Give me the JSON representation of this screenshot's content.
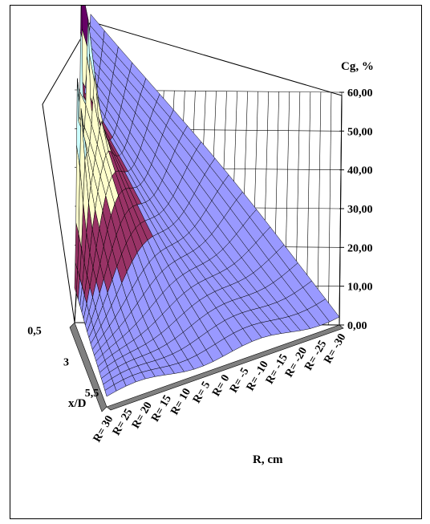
{
  "chart_data": {
    "type": "surface3d",
    "title": "",
    "zlabel": "Cg, %",
    "xlabel": "R, cm",
    "ylabel": "x/D",
    "zlim": [
      0,
      60
    ],
    "z_ticks": [
      "0,00",
      "10,00",
      "20,00",
      "30,00",
      "40,00",
      "50,00",
      "60,00"
    ],
    "r_ticks": [
      "R= 30",
      "R= 25",
      "R= 20",
      "R= 15",
      "R= 10",
      "R= 5",
      "R= 0",
      "R= -5",
      "R= -10",
      "R= -15",
      "R= -20",
      "R= -25",
      "R= -30"
    ],
    "xd_ticks": [
      "0,5",
      "3",
      "5,5"
    ],
    "grid": true,
    "band_colors": [
      "#9999ff",
      "#993366",
      "#ffffcc",
      "#ccffff",
      "#660066"
    ],
    "peaks": [
      {
        "R": 20,
        "x/D": 0.5,
        "Cg": 55
      },
      {
        "R": 5,
        "x/D": 0.5,
        "Cg": 57
      }
    ],
    "profile_near_nozzle": {
      "R": [
        30,
        25,
        20,
        15,
        10,
        5,
        0,
        -5,
        -10,
        -15,
        -20,
        -25,
        -30
      ],
      "Cg": [
        8,
        30,
        55,
        42,
        40,
        57,
        43,
        25,
        12,
        8,
        5,
        4,
        3
      ]
    }
  }
}
